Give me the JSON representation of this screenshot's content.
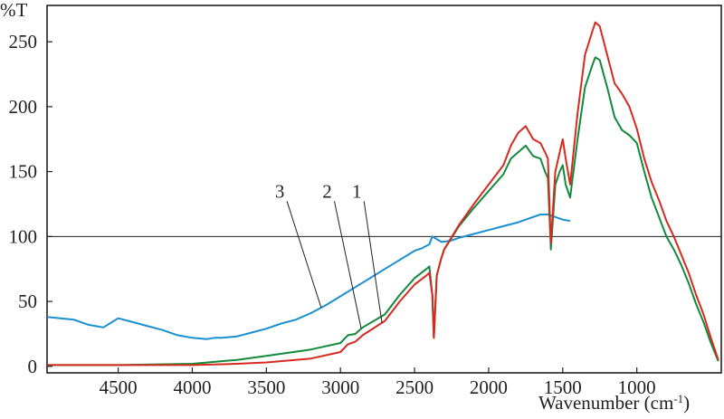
{
  "chart_data": {
    "type": "line",
    "ylabel": "%T",
    "xlabel": "Wavenumber (cm",
    "xlabel_sup": "-1",
    "xlabel_close": ")",
    "xlim": [
      4980,
      430
    ],
    "ylim": [
      -5,
      278
    ],
    "xticks": [
      4500,
      4000,
      3500,
      3000,
      2500,
      2000,
      1500,
      1000
    ],
    "xtick_labels": [
      "4500",
      "4000",
      "3500",
      "3000",
      "2500",
      "2000",
      "1500",
      "1000"
    ],
    "yticks": [
      0,
      50,
      100,
      150,
      200,
      250
    ],
    "ytick_labels": [
      "0",
      "50",
      "100",
      "150",
      "200",
      "250"
    ],
    "reference_line": 100,
    "grid": false,
    "legend": "none",
    "series": [
      {
        "name": "1",
        "color": "#d42a20",
        "x": [
          4980,
          4500,
          4000,
          3700,
          3500,
          3200,
          3000,
          2950,
          2900,
          2850,
          2700,
          2600,
          2500,
          2420,
          2400,
          2380,
          2370,
          2350,
          2320,
          2300,
          2200,
          2100,
          2000,
          1900,
          1850,
          1800,
          1750,
          1700,
          1650,
          1620,
          1600,
          1580,
          1550,
          1520,
          1500,
          1480,
          1450,
          1400,
          1350,
          1300,
          1280,
          1250,
          1200,
          1150,
          1100,
          1050,
          1000,
          950,
          900,
          850,
          800,
          750,
          700,
          650,
          600,
          550,
          500,
          450
        ],
        "y": [
          1,
          1,
          1,
          2,
          3,
          6,
          11,
          17,
          19,
          24,
          35,
          50,
          63,
          70,
          72,
          55,
          22,
          70,
          83,
          90,
          109,
          125,
          140,
          155,
          170,
          180,
          185,
          175,
          172,
          165,
          160,
          95,
          150,
          165,
          175,
          160,
          140,
          195,
          240,
          258,
          265,
          262,
          240,
          218,
          210,
          200,
          183,
          160,
          142,
          128,
          112,
          100,
          86,
          72,
          55,
          40,
          22,
          5
        ]
      },
      {
        "name": "2",
        "color": "#13893b",
        "x": [
          4980,
          4500,
          4000,
          3700,
          3500,
          3200,
          3000,
          2950,
          2900,
          2850,
          2700,
          2600,
          2500,
          2420,
          2400,
          2380,
          2370,
          2350,
          2320,
          2300,
          2200,
          2100,
          2000,
          1900,
          1850,
          1800,
          1750,
          1700,
          1650,
          1620,
          1600,
          1580,
          1550,
          1520,
          1500,
          1480,
          1450,
          1400,
          1350,
          1300,
          1280,
          1250,
          1200,
          1150,
          1100,
          1050,
          1000,
          950,
          900,
          850,
          800,
          750,
          700,
          650,
          600,
          550,
          500,
          450
        ],
        "y": [
          1,
          1,
          2,
          5,
          8,
          13,
          18,
          24,
          25,
          30,
          40,
          55,
          68,
          75,
          77,
          55,
          22,
          70,
          83,
          90,
          108,
          122,
          135,
          148,
          160,
          165,
          170,
          162,
          160,
          150,
          145,
          90,
          140,
          150,
          155,
          140,
          130,
          175,
          215,
          232,
          238,
          236,
          215,
          192,
          182,
          178,
          172,
          150,
          130,
          115,
          100,
          90,
          78,
          64,
          48,
          34,
          18,
          4
        ]
      },
      {
        "name": "3",
        "color": "#1a8fd0",
        "x": [
          4980,
          4800,
          4700,
          4600,
          4500,
          4400,
          4300,
          4200,
          4100,
          4000,
          3900,
          3850,
          3800,
          3700,
          3600,
          3500,
          3400,
          3300,
          3200,
          3100,
          3000,
          2900,
          2800,
          2700,
          2600,
          2500,
          2450,
          2400,
          2380,
          2350,
          2320,
          2300,
          2250,
          2200,
          2100,
          2000,
          1900,
          1800,
          1700,
          1650,
          1600,
          1550,
          1500,
          1450
        ],
        "y": [
          38,
          36,
          32,
          30,
          37,
          34,
          31,
          28,
          24,
          22,
          21,
          22,
          22,
          23,
          26,
          29,
          33,
          36,
          41,
          47,
          54,
          61,
          68,
          75,
          82,
          89,
          91,
          94,
          100,
          98,
          96,
          96,
          97,
          99,
          102,
          105,
          108,
          111,
          115,
          117,
          117,
          115,
          113,
          112
        ]
      }
    ],
    "curve_labels": [
      {
        "text": "3",
        "series": "3"
      },
      {
        "text": "2",
        "series": "2"
      },
      {
        "text": "1",
        "series": "1"
      }
    ]
  }
}
